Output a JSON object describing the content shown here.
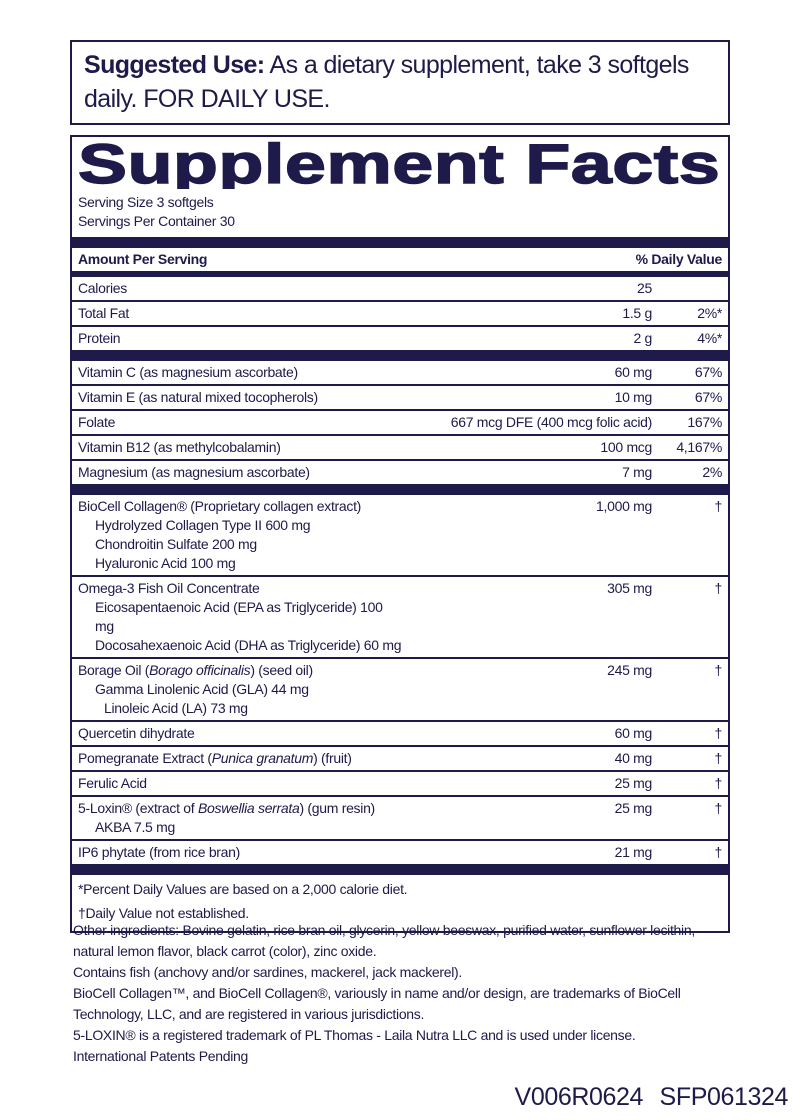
{
  "suggested_use": {
    "label": "Suggested Use:",
    "text": " As a dietary supplement, take 3 softgels daily. FOR DAILY USE."
  },
  "title": "Supplement Facts",
  "serving_size": "Serving Size 3 softgels",
  "servings_per_container": "Servings Per Container 30",
  "header": {
    "amount": "Amount Per Serving",
    "dv": "% Daily Value"
  },
  "sections": [
    [
      {
        "name": "Calories",
        "amount": "25",
        "dv": ""
      },
      {
        "name": "Total Fat",
        "amount": "1.5 g",
        "dv": "2%*"
      },
      {
        "name": "Protein",
        "amount": "2 g",
        "dv": "4%*"
      }
    ],
    [
      {
        "name": "Vitamin C (as magnesium ascorbate)",
        "amount": "60 mg",
        "dv": "67%"
      },
      {
        "name": "Vitamin E (as natural mixed tocopherols)",
        "amount": "10 mg",
        "dv": "67%"
      },
      {
        "name": "Folate",
        "amount": "667 mcg DFE (400 mcg folic acid)",
        "dv": "167%"
      },
      {
        "name": "Vitamin B12 (as methylcobalamin)",
        "amount": "100 mcg",
        "dv": "4,167%"
      },
      {
        "name": "Magnesium (as magnesium ascorbate)",
        "amount": "7 mg",
        "dv": "2%"
      }
    ]
  ],
  "botanicals": [
    {
      "name": "BioCell Collagen® (Proprietary collagen extract)",
      "amount": "1,000 mg",
      "dv": "†",
      "subs": [
        "Hydrolyzed Collagen Type II 600 mg",
        "Chondroitin Sulfate 200 mg",
        "Hyaluronic Acid 100 mg"
      ]
    },
    {
      "name": "Omega-3 Fish Oil Concentrate",
      "amount": "305 mg",
      "dv": "†",
      "subs": [
        "Eicosapentaenoic Acid (EPA as Triglyceride) 100 mg",
        "Docosahexaenoic Acid (DHA as Triglyceride) 60 mg"
      ]
    },
    {
      "name_pre": "Borage Oil (",
      "name_it": "Borago officinalis",
      "name_post": ") (seed oil)",
      "amount": "245 mg",
      "dv": "†",
      "subs": [
        "Gamma Linolenic Acid (GLA) 44 mg",
        "Linoleic Acid (LA) 73 mg"
      ]
    },
    {
      "name": "Quercetin dihydrate",
      "amount": "60 mg",
      "dv": "†"
    },
    {
      "name_pre": "Pomegranate Extract (",
      "name_it": "Punica granatum",
      "name_post": ") (fruit)",
      "amount": "40 mg",
      "dv": "†"
    },
    {
      "name": "Ferulic Acid",
      "amount": "25 mg",
      "dv": "†"
    },
    {
      "name_pre": "5-Loxin® (extract of ",
      "name_it": "Boswellia serrata",
      "name_post": ") (gum resin)",
      "amount": "25 mg",
      "dv": "†",
      "subs": [
        "AKBA 7.5 mg"
      ]
    },
    {
      "name": "IP6 phytate (from rice bran)",
      "amount": "21 mg",
      "dv": "†"
    }
  ],
  "footnotes": [
    "*Percent Daily Values are based on a 2,000 calorie diet.",
    "†Daily Value not established."
  ],
  "other": [
    "Other ingredients: Bovine gelatin, rice bran oil, glycerin, yellow beeswax, purified water, sunflower lecithin, natural lemon flavor, black carrot (color), zinc oxide.",
    "Contains fish (anchovy and/or sardines, mackerel, jack mackerel).",
    "BioCell Collagen™, and BioCell Collagen®, variously in name and/or design, are trademarks of BioCell Technology, LLC, and are registered in various jurisdictions.",
    "5-LOXIN® is a registered trademark of PL Thomas - Laila Nutra LLC and is used under license.",
    "International Patents Pending"
  ],
  "code": "V006R0624  SFP061324",
  "colors": {
    "ink": "#1e1a4a"
  }
}
